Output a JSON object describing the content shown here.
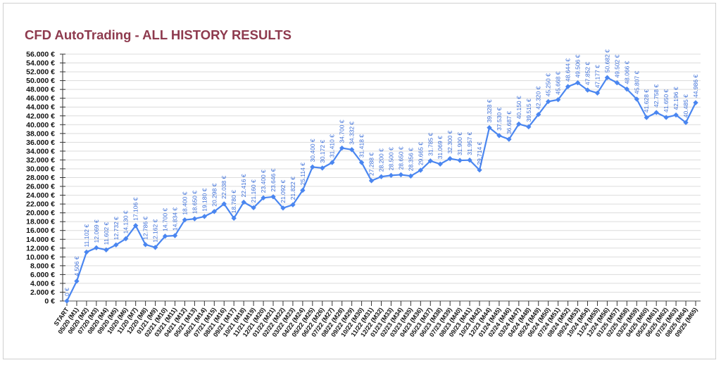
{
  "chart_data": {
    "type": "line",
    "title": "CFD AutoTrading - ALL HISTORY RESULTS",
    "xlabel": "",
    "ylabel": "",
    "ylim": [
      0,
      56000
    ],
    "ytick_step": 2000,
    "y_unit_suffix": " €",
    "grid": true,
    "legend": "none",
    "colors": {
      "line": "#4a86f0",
      "label": "#3c6fd8",
      "title": "#8e3a4e"
    },
    "categories": [
      "START",
      "05/20 (M1)",
      "06/20 (M2)",
      "07/20 (M3)",
      "08/20 (M4)",
      "09/20 (M5)",
      "10/20 (M6)",
      "11/20 (M7)",
      "12/20 (M8)",
      "01/21 (M9)",
      "02/21 (M10)",
      "03/21 (M11)",
      "04/21 (M12)",
      "05/21 (M13)",
      "06/21 (M14)",
      "07/21 (M15)",
      "08/21 (M16)",
      "09/21 (M17)",
      "10/21 (M18)",
      "11/21 (M19)",
      "12/21 (M20)",
      "01/22 (M21)",
      "02/22 (M22)",
      "03/22 (M23)",
      "04/22 (M24)",
      "05/22 (M25)",
      "06/22 (M26)",
      "07/22 (M27)",
      "08/22 (M28)",
      "09/22 (M29)",
      "10/22 (M30)",
      "11/22 (M31)",
      "12/22 (M32)",
      "01/23 (M33)",
      "02/23 (M34)",
      "03/23 (M35)",
      "04/23 (M36)",
      "05/23 (M37)",
      "06/23 (M38)",
      "07/23 (M39)",
      "08/23 (M40)",
      "09/23 (M41)",
      "10/23 (M42)",
      "12/23 (M44)",
      "01/24 (M45)",
      "02/24 (M46)",
      "03/24 (M47)",
      "04/24 (M48)",
      "05/24 (M49)",
      "06/24 (M50)",
      "07/24 (M51)",
      "08/24 (M52)",
      "09/24 (M53)",
      "10/24 (M54)",
      "11/24 (M55)",
      "12/24 (M56)",
      "01/25 (M57)",
      "02/25 (M58)",
      "03/25 (M59)",
      "04/25 (M60)",
      "05/25 (M61)",
      "06/25 (M62)",
      "07/25 (M63)",
      "08/25 (M64)",
      "09/25 (M65)"
    ],
    "values": [
      0,
      4506,
      11102,
      12069,
      11602,
      12732,
      14130,
      17106,
      12786,
      12162,
      14700,
      14834,
      18400,
      18650,
      19180,
      20298,
      22038,
      18780,
      22416,
      21160,
      23400,
      23646,
      21092,
      21822,
      25114,
      30400,
      30172,
      31410,
      34700,
      34332,
      31418,
      27288,
      28200,
      28500,
      28650,
      28356,
      29665,
      31785,
      31069,
      32300,
      31900,
      31957,
      29714,
      39328,
      37530,
      36687,
      40150,
      39515,
      42320,
      45250,
      45668,
      48644,
      49506,
      47852,
      47177,
      50682,
      49502,
      48066,
      45807,
      41628,
      42758,
      41650,
      42196,
      40485,
      44986
    ]
  }
}
